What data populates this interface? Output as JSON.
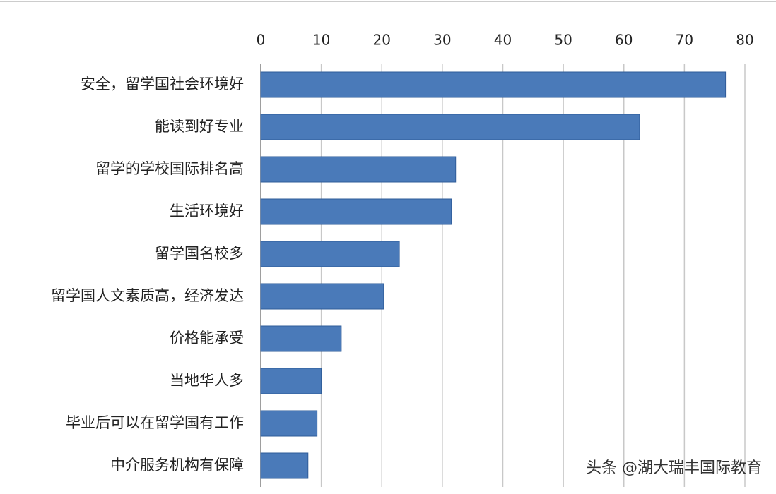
{
  "chart_data": {
    "type": "bar",
    "orientation": "horizontal",
    "categories": [
      "安全，留学国社会环境好",
      "能读到好专业",
      "留学的学校国际排名高",
      "生活环境好",
      "留学国名校多",
      "留学国人文素质高，经济发达",
      "价格能承受",
      "当地华人多",
      "毕业后可以在留学国有工作",
      "中介服务机构有保障"
    ],
    "values": [
      76.8,
      62.6,
      32.2,
      31.5,
      22.9,
      20.3,
      13.3,
      10.0,
      9.3,
      7.8
    ],
    "color": "#4a7ab9",
    "xlim": [
      0,
      80
    ],
    "xticks": [
      0,
      10,
      20,
      30,
      40,
      50,
      60,
      70,
      80
    ],
    "grid": true,
    "watermark": "头条 @湖大瑞丰国际教育"
  }
}
